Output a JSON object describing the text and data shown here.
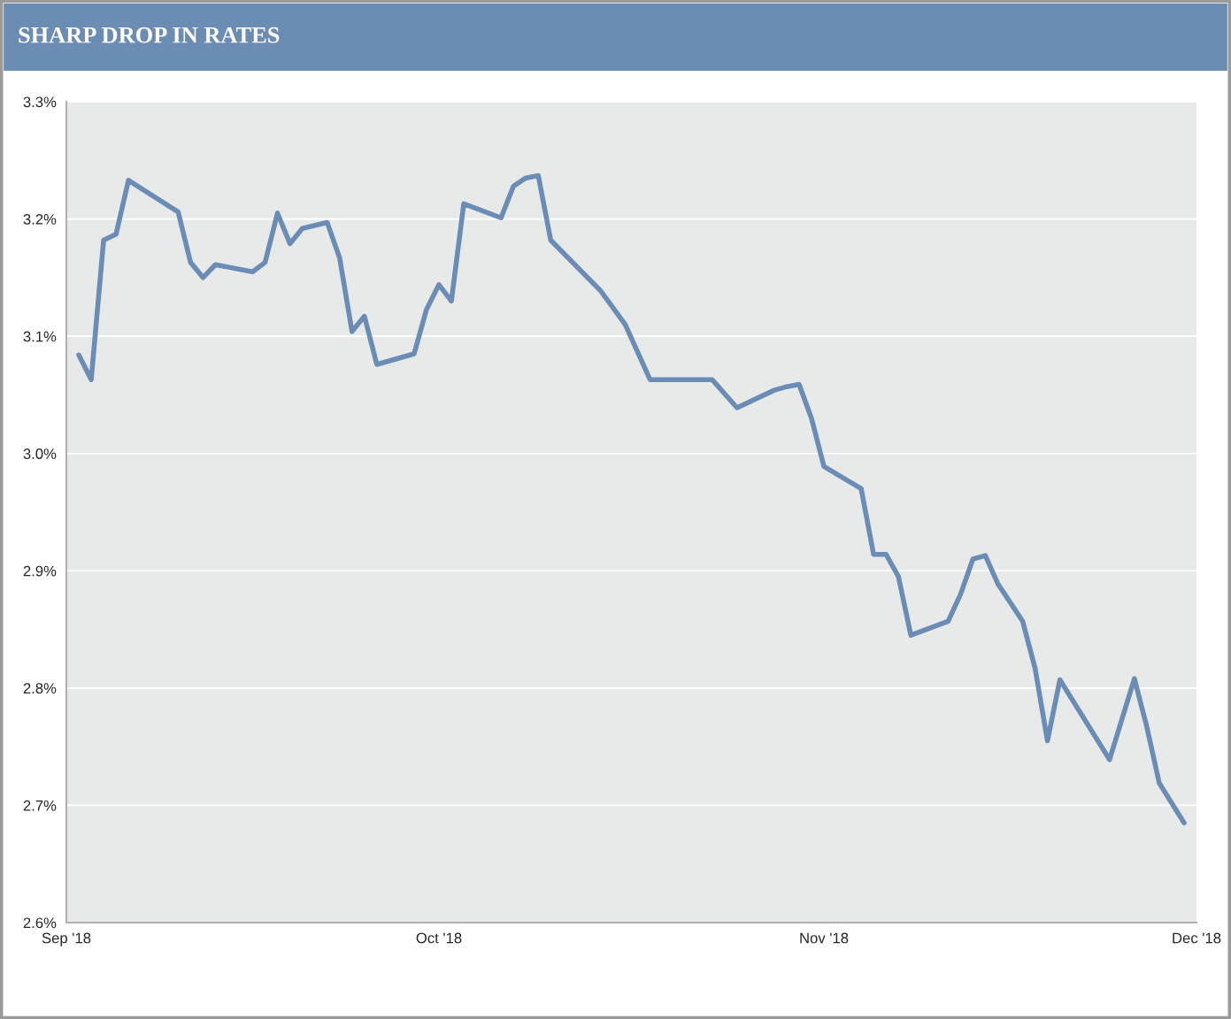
{
  "chart_data": {
    "type": "line",
    "title": "SHARP DROP IN RATES",
    "x": [
      "2018-09-02",
      "2018-09-03",
      "2018-09-04",
      "2018-09-05",
      "2018-09-06",
      "2018-09-10",
      "2018-09-11",
      "2018-09-12",
      "2018-09-13",
      "2018-09-16",
      "2018-09-17",
      "2018-09-18",
      "2018-09-19",
      "2018-09-20",
      "2018-09-22",
      "2018-09-23",
      "2018-09-24",
      "2018-09-25",
      "2018-09-26",
      "2018-09-29",
      "2018-09-30",
      "2018-10-01",
      "2018-10-02",
      "2018-10-03",
      "2018-10-06",
      "2018-10-07",
      "2018-10-08",
      "2018-10-09",
      "2018-10-10",
      "2018-10-14",
      "2018-10-16",
      "2018-10-18",
      "2018-10-23",
      "2018-10-25",
      "2018-10-28",
      "2018-10-29",
      "2018-10-30",
      "2018-10-31",
      "2018-11-01",
      "2018-11-04",
      "2018-11-05",
      "2018-11-06",
      "2018-11-07",
      "2018-11-08",
      "2018-11-11",
      "2018-11-12",
      "2018-11-13",
      "2018-11-14",
      "2018-11-15",
      "2018-11-17",
      "2018-11-18",
      "2018-11-19",
      "2018-11-20",
      "2018-11-24",
      "2018-11-26",
      "2018-11-27",
      "2018-11-28",
      "2018-11-30"
    ],
    "series": [
      {
        "color": "#6a8cb5",
        "values": [
          3.084,
          3.063,
          3.182,
          3.187,
          3.233,
          3.206,
          3.163,
          3.15,
          3.161,
          3.155,
          3.163,
          3.205,
          3.179,
          3.192,
          3.197,
          3.167,
          3.104,
          3.117,
          3.076,
          3.085,
          3.123,
          3.144,
          3.13,
          3.213,
          3.201,
          3.228,
          3.235,
          3.237,
          3.182,
          3.139,
          3.11,
          3.063,
          3.063,
          3.039,
          3.054,
          3.057,
          3.059,
          3.03,
          2.989,
          2.97,
          2.914,
          2.914,
          2.895,
          2.845,
          2.857,
          2.88,
          2.91,
          2.913,
          2.889,
          2.857,
          2.817,
          2.755,
          2.807,
          2.739,
          2.808,
          2.767,
          2.719,
          2.685
        ]
      }
    ],
    "xlim": [
      "2018-09-01",
      "2018-12-01"
    ],
    "xticks": [
      {
        "value": "2018-09-01",
        "label": "Sep '18"
      },
      {
        "value": "2018-10-01",
        "label": "Oct '18"
      },
      {
        "value": "2018-11-01",
        "label": "Nov '18"
      },
      {
        "value": "2018-12-01",
        "label": "Dec '18"
      }
    ],
    "ylim": [
      2.6,
      3.3
    ],
    "yticks": [
      {
        "value": 2.6,
        "label": "2.6%"
      },
      {
        "value": 2.7,
        "label": "2.7%"
      },
      {
        "value": 2.8,
        "label": "2.8%"
      },
      {
        "value": 2.9,
        "label": "2.9%"
      },
      {
        "value": 3.0,
        "label": "3.0%"
      },
      {
        "value": 3.1,
        "label": "3.1%"
      },
      {
        "value": 3.2,
        "label": "3.2%"
      },
      {
        "value": 3.3,
        "label": "3.3%"
      }
    ],
    "grid": "y",
    "line_style": "solid",
    "marker": "none"
  }
}
